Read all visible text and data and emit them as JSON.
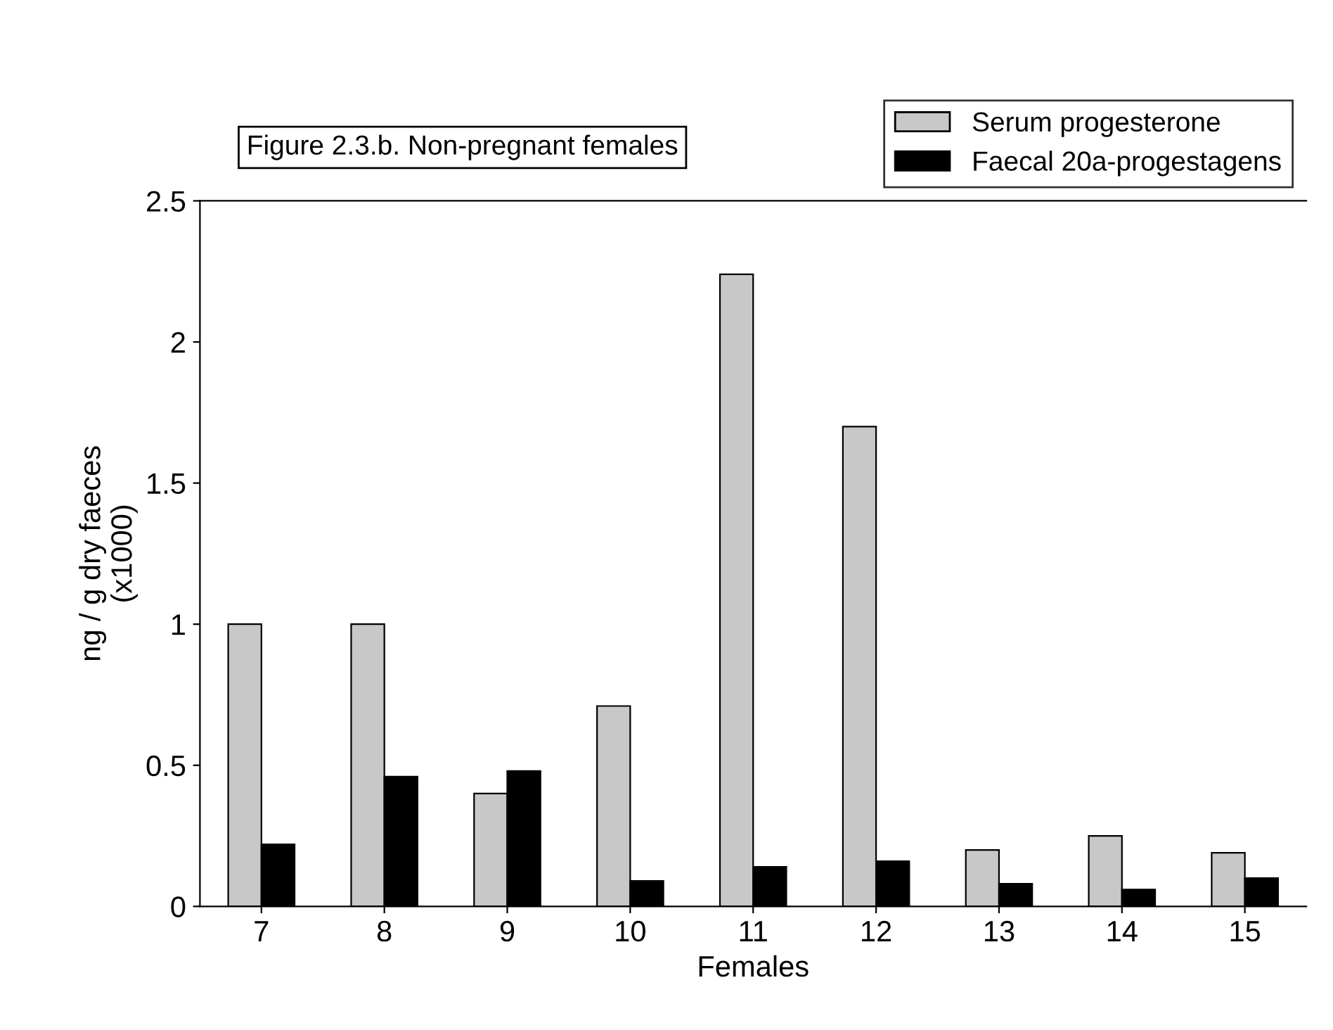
{
  "chart_data": {
    "type": "bar",
    "title": "Figure 2.3.b. Non-pregnant females",
    "xlabel": "Females",
    "ylabel": "ng / g dry faeces\n(x1000)",
    "categories": [
      "7",
      "8",
      "9",
      "10",
      "11",
      "12",
      "13",
      "14",
      "15"
    ],
    "series": [
      {
        "name": "Serum progesterone",
        "color": "#c8c8c8",
        "values": [
          1.0,
          1.0,
          0.4,
          0.71,
          2.24,
          1.7,
          0.2,
          0.25,
          0.19
        ]
      },
      {
        "name": "Faecal 20a-progestagens",
        "color": "#000000",
        "values": [
          0.22,
          0.46,
          0.48,
          0.09,
          0.14,
          0.16,
          0.08,
          0.06,
          0.1
        ]
      }
    ],
    "ylim": [
      0,
      2.5
    ],
    "yticks": [
      0,
      0.5,
      1,
      1.5,
      2,
      2.5
    ],
    "grid": false,
    "legend": "top right"
  }
}
